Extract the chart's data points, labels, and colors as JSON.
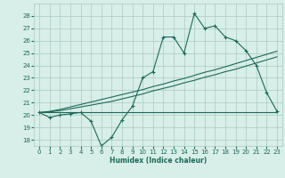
{
  "xlabel": "Humidex (Indice chaleur)",
  "x": [
    0,
    1,
    2,
    3,
    4,
    5,
    6,
    7,
    8,
    9,
    10,
    11,
    12,
    13,
    14,
    15,
    16,
    17,
    18,
    19,
    20,
    21,
    22,
    23
  ],
  "line_main": [
    20.2,
    19.8,
    20.0,
    20.1,
    20.2,
    19.5,
    17.5,
    18.2,
    19.6,
    20.7,
    23.0,
    23.5,
    26.3,
    26.3,
    25.0,
    28.2,
    27.0,
    27.2,
    26.3,
    26.0,
    25.2,
    24.0,
    21.8,
    20.3
  ],
  "line_trend1": [
    20.2,
    20.25,
    20.35,
    20.5,
    20.65,
    20.8,
    20.95,
    21.1,
    21.3,
    21.5,
    21.7,
    21.95,
    22.15,
    22.35,
    22.6,
    22.8,
    23.05,
    23.25,
    23.5,
    23.7,
    23.95,
    24.2,
    24.45,
    24.7
  ],
  "line_trend2": [
    20.2,
    20.3,
    20.45,
    20.65,
    20.85,
    21.05,
    21.25,
    21.45,
    21.65,
    21.85,
    22.05,
    22.3,
    22.5,
    22.75,
    22.95,
    23.2,
    23.45,
    23.65,
    23.9,
    24.15,
    24.4,
    24.65,
    24.9,
    25.15
  ],
  "line_flat": [
    20.2,
    20.2,
    20.2,
    20.2,
    20.2,
    20.2,
    20.2,
    20.2,
    20.2,
    20.2,
    20.2,
    20.2,
    20.2,
    20.2,
    20.2,
    20.2,
    20.2,
    20.2,
    20.2,
    20.2,
    20.2,
    20.2,
    20.2,
    20.2
  ],
  "color": "#1a6b5a",
  "bg_color": "#d8eee8",
  "grid_color": "#aacbbf",
  "ylim": [
    17.5,
    29.0
  ],
  "yticks": [
    18,
    19,
    20,
    21,
    22,
    23,
    24,
    25,
    26,
    27,
    28
  ],
  "xticks": [
    0,
    1,
    2,
    3,
    4,
    5,
    6,
    7,
    8,
    9,
    10,
    11,
    12,
    13,
    14,
    15,
    16,
    17,
    18,
    19,
    20,
    21,
    22,
    23
  ]
}
